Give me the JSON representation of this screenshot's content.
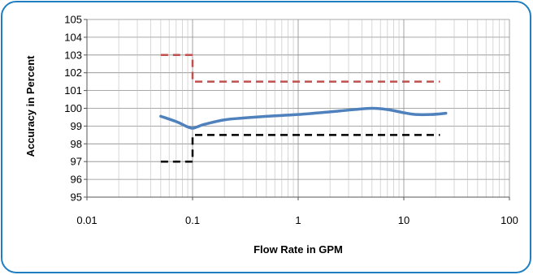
{
  "chart_data": {
    "type": "line",
    "x_scale": "log",
    "xlabel": "Flow Rate in GPM",
    "ylabel": "Accuracy in Percent",
    "xlim": [
      0.01,
      100
    ],
    "ylim": [
      95,
      105
    ],
    "x_ticks": [
      "0.01",
      "0.1",
      "1",
      "10",
      "100"
    ],
    "y_ticks": [
      "95",
      "96",
      "97",
      "98",
      "99",
      "100",
      "101",
      "102",
      "103",
      "104",
      "105"
    ],
    "grid": true,
    "legend": "none",
    "series": [
      {
        "style": "solid",
        "color": "#4f81bd",
        "points": [
          [
            0.05,
            99.55
          ],
          [
            0.07,
            99.25
          ],
          [
            0.09,
            98.95
          ],
          [
            0.1,
            98.88
          ],
          [
            0.11,
            98.95
          ],
          [
            0.13,
            99.1
          ],
          [
            0.2,
            99.35
          ],
          [
            0.3,
            99.45
          ],
          [
            0.5,
            99.55
          ],
          [
            1,
            99.65
          ],
          [
            2,
            99.8
          ],
          [
            3,
            99.9
          ],
          [
            5,
            100.0
          ],
          [
            7,
            99.93
          ],
          [
            10,
            99.75
          ],
          [
            13,
            99.65
          ],
          [
            18,
            99.65
          ],
          [
            25,
            99.72
          ]
        ]
      },
      {
        "style": "dashed",
        "color": "#c0504d",
        "points": [
          [
            0.05,
            103.0
          ],
          [
            0.1,
            103.0
          ],
          [
            0.1,
            101.5
          ],
          [
            22,
            101.5
          ]
        ]
      },
      {
        "style": "dashed",
        "color": "#000000",
        "points": [
          [
            0.05,
            97.0
          ],
          [
            0.1,
            97.0
          ],
          [
            0.1,
            98.5
          ],
          [
            22,
            98.5
          ]
        ]
      }
    ]
  }
}
